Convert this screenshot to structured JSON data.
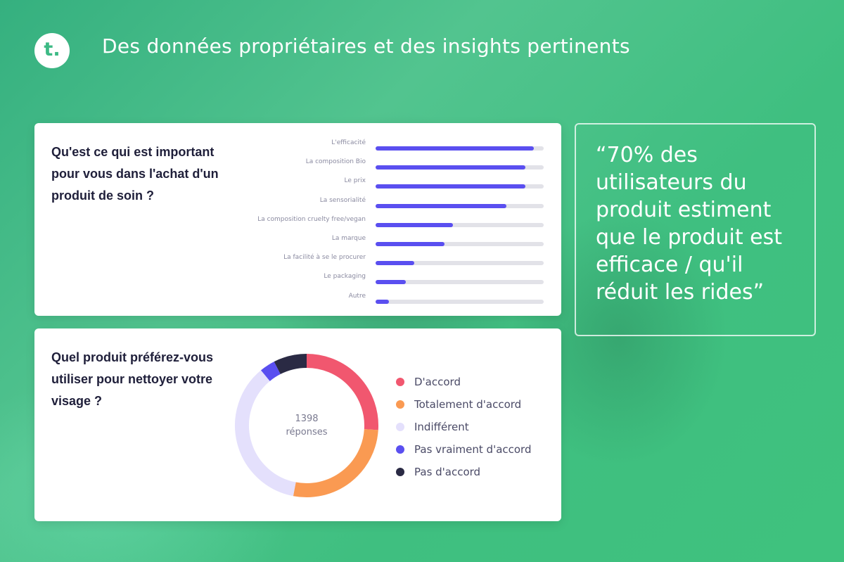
{
  "header": {
    "logo_letter": "t.",
    "title": "Des données propriétaires et des insights pertinents"
  },
  "colors": {
    "background": "#3fbf86",
    "bar": "#5a4ff0",
    "track": "#e2e2e8"
  },
  "chart_data": [
    {
      "type": "bar",
      "orientation": "horizontal",
      "title": "Qu'est ce qui est important pour vous dans l'achat d'un produit de soin ?",
      "categories": [
        "L'efficacité",
        "La composition Bio",
        "Le prix",
        "La sensorialité",
        "La composition cruelty free/vegan",
        "La marque",
        "La facilité à se le procurer",
        "Le packaging",
        "Autre"
      ],
      "values": [
        94,
        89,
        89,
        78,
        46,
        41,
        23,
        18,
        8
      ],
      "xlim": [
        0,
        100
      ]
    },
    {
      "type": "pie",
      "style": "donut",
      "title": "Quel produit préférez-vous utiliser pour nettoyer votre visage ?",
      "center_count": "1398",
      "center_label": "réponses",
      "labels": [
        "D'accord",
        "Totalement d'accord",
        "Indifférent",
        "Pas vraiment d'accord",
        "Pas d'accord"
      ],
      "values": [
        26,
        27,
        36,
        3.5,
        7.5
      ],
      "colors": [
        "#f1576f",
        "#fa9a52",
        "#e4e0fc",
        "#5a4ff0",
        "#2a2a44"
      ]
    }
  ],
  "quote": {
    "text": "“70% des utilisateurs du produit estiment que le produit est efficace / qu'il réduit les rides”"
  }
}
